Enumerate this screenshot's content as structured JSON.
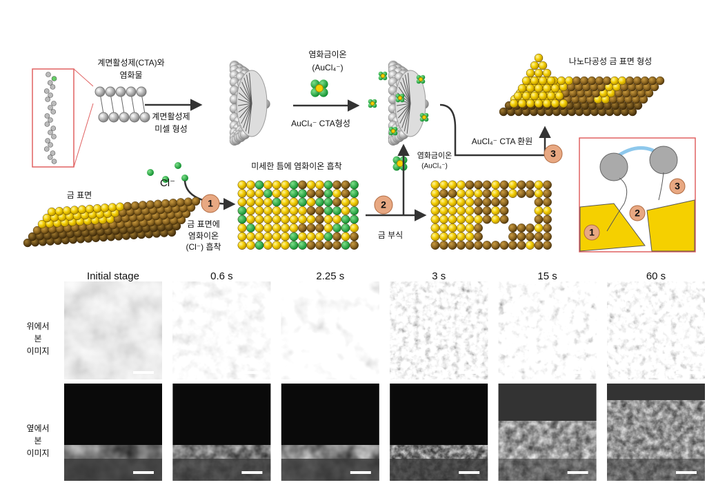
{
  "diagram": {
    "surfactant_label": [
      "계면활성제(CTA)와",
      "염화물"
    ],
    "micelle_label": [
      "계면활성제",
      "미셀 형성"
    ],
    "chloroaurate_top": [
      "염화금이온",
      "(AuCl₄⁻)"
    ],
    "complex_label": "AuCl₄⁻ CTA형성",
    "nanoporous_label": "나노다공성 금 표면 형성",
    "chloride_label": "Cl⁻",
    "gold_surface_label": "금 표면",
    "adsorption_label": [
      "금 표면에",
      "염화이온",
      "(Cl⁻) 흡착"
    ],
    "crevice_label": "미세한 틈에 염화이온 흡착",
    "chloroaurate_mid": [
      "염화금이온",
      "(AuCl₄⁻)"
    ],
    "corrosion_label": "금 부식",
    "reduction_label": "AuCl₄⁻ CTA 환원",
    "steps": [
      "1",
      "2",
      "3"
    ],
    "inset_steps": [
      "1",
      "2",
      "3"
    ]
  },
  "sem": {
    "time_labels": [
      "Initial stage",
      "0.6 s",
      "2.25 s",
      "3 s",
      "15 s",
      "60 s"
    ],
    "row_labels": [
      [
        "위에서",
        "본",
        "이미지"
      ],
      [
        "옆에서",
        "본",
        "이미지"
      ]
    ]
  }
}
